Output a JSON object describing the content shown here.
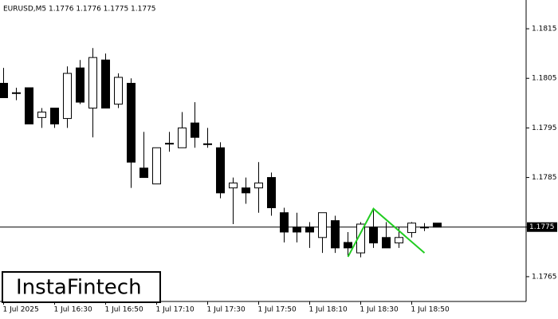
{
  "chart_data": {
    "type": "candlestick",
    "title": "EURUSD,M5  1.1776 1.1776 1.1775 1.1775",
    "categories": [
      "1 Jul 2025",
      null,
      null,
      null,
      "1 Jul 16:30",
      null,
      null,
      null,
      "1 Jul 16:50",
      null,
      null,
      null,
      "1 Jul 17:10",
      null,
      null,
      null,
      "1 Jul 17:30",
      null,
      null,
      null,
      "1 Jul 17:50",
      null,
      null,
      null,
      "1 Jul 18:10",
      null,
      null,
      null,
      "1 Jul 18:30",
      null,
      null,
      null,
      "1 Jul 18:50",
      null,
      null
    ],
    "open": [
      1.1804,
      1.18021,
      1.18031,
      1.17971,
      1.1799,
      1.17969,
      1.18071,
      1.1799,
      1.18087,
      1.17998,
      1.1804,
      1.17869,
      1.17837,
      1.17919,
      1.1791,
      1.1796,
      1.17918,
      1.1791,
      1.17829,
      1.17829,
      1.17829,
      1.1785,
      1.17779,
      1.1775,
      1.1775,
      1.17729,
      1.17763,
      1.17719,
      1.17698,
      1.1775,
      1.17729,
      1.17718,
      1.17739,
      1.1775,
      1.17758
    ],
    "high": [
      1.18071,
      1.18031,
      1.18031,
      1.1799,
      1.1799,
      1.18074,
      1.18087,
      1.18111,
      1.181,
      1.1806,
      1.1805,
      1.17942,
      1.1791,
      1.17942,
      1.17982,
      1.18002,
      1.1795,
      1.17921,
      1.1785,
      1.1785,
      1.17881,
      1.1786,
      1.17789,
      1.17779,
      1.1776,
      1.17779,
      1.17773,
      1.1774,
      1.1776,
      1.17789,
      1.1776,
      1.1775,
      1.1776,
      1.17758,
      1.17758
    ],
    "low": [
      1.18011,
      1.18006,
      1.17958,
      1.1795,
      1.1795,
      1.1795,
      1.17998,
      1.17931,
      1.1799,
      1.1799,
      1.17829,
      1.1785,
      1.17837,
      1.17902,
      1.1791,
      1.1791,
      1.1791,
      1.17808,
      1.17756,
      1.17797,
      1.17779,
      1.17773,
      1.17719,
      1.17719,
      1.17708,
      1.17698,
      1.17698,
      1.17692,
      1.17689,
      1.17708,
      1.17708,
      1.17708,
      1.17729,
      1.17742,
      1.1775
    ],
    "close": [
      1.18011,
      1.18021,
      1.17958,
      1.17982,
      1.17958,
      1.1806,
      1.18002,
      1.18092,
      1.1799,
      1.18052,
      1.17881,
      1.1785,
      1.1791,
      1.17919,
      1.1795,
      1.17931,
      1.17918,
      1.17819,
      1.17839,
      1.17819,
      1.17839,
      1.17789,
      1.1774,
      1.1774,
      1.1774,
      1.17779,
      1.17708,
      1.17708,
      1.17756,
      1.17718,
      1.17708,
      1.17729,
      1.17758,
      1.1775,
      1.1775
    ],
    "up_color": "#ffffff",
    "down_color": "#000000",
    "ylim": [
      1.176,
      1.18208
    ],
    "yticks": [
      1.1815,
      1.1805,
      1.1795,
      1.1785,
      1.1775,
      1.1765
    ],
    "current_price": 1.1775,
    "pattern": {
      "color": "#22cc22",
      "x": [
        27,
        29,
        33
      ],
      "y": [
        1.1769,
        1.17787,
        1.17698
      ]
    },
    "watermark": "InstaFintech"
  }
}
